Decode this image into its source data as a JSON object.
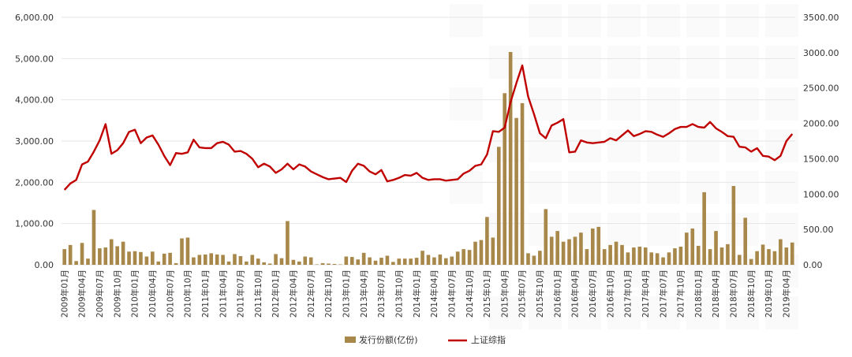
{
  "chart_data": {
    "type": "bar+line",
    "title": "",
    "colors": {
      "bar": "#a8884a",
      "line": "#c00000",
      "grid": "#e6e6e6",
      "text": "#333333"
    },
    "y_left": {
      "ylim": [
        0,
        6000
      ],
      "ticks": [
        "0.00",
        "1,000.00",
        "2,000.00",
        "3,000.00",
        "4,000.00",
        "5,000.00",
        "6,000.00"
      ]
    },
    "y_right": {
      "ylim": [
        0,
        3500
      ],
      "ticks": [
        "0.00",
        "500.00",
        "1000.00",
        "1500.00",
        "2000.00",
        "2500.00",
        "3000.00",
        "3500.00"
      ]
    },
    "x_tick_labels": [
      "2009年01月",
      "2009年04月",
      "2009年07月",
      "2009年10月",
      "2010年01月",
      "2010年04月",
      "2010年07月",
      "2010年10月",
      "2011年01月",
      "2011年04月",
      "2011年07月",
      "2011年10月",
      "2012年01月",
      "2012年04月",
      "2012年07月",
      "2012年10月",
      "2013年01月",
      "2013年04月",
      "2013年07月",
      "2013年10月",
      "2014年01月",
      "2014年04月",
      "2014年07月",
      "2014年10月",
      "2015年01月",
      "2015年04月",
      "2015年07月",
      "2015年10月",
      "2016年01月",
      "2016年04月",
      "2016年07月",
      "2016年10月",
      "2017年01月",
      "2017年04月",
      "2017年07月",
      "2017年10月",
      "2018年01月",
      "2018年04月",
      "2018年07月",
      "2018年10月",
      "2019年01月",
      "2019年04月"
    ],
    "series": [
      {
        "name": "发行份额(亿份)",
        "type": "bar",
        "axis": "left",
        "values": [
          380,
          480,
          90,
          530,
          150,
          1330,
          400,
          420,
          620,
          450,
          560,
          320,
          330,
          310,
          200,
          320,
          80,
          270,
          290,
          40,
          640,
          660,
          180,
          240,
          250,
          280,
          250,
          240,
          80,
          260,
          210,
          80,
          240,
          150,
          60,
          30,
          260,
          160,
          1060,
          120,
          80,
          200,
          180,
          10,
          40,
          30,
          20,
          10,
          200,
          190,
          130,
          290,
          180,
          100,
          170,
          220,
          70,
          150,
          150,
          150,
          170,
          340,
          240,
          180,
          250,
          160,
          200,
          320,
          380,
          360,
          560,
          600,
          1160,
          660,
          2860,
          4160,
          5160,
          3560,
          3920,
          280,
          220,
          340,
          1350,
          680,
          820,
          560,
          620,
          680,
          780,
          380,
          880,
          920,
          380,
          480,
          560,
          480,
          300,
          420,
          440,
          420,
          300,
          280,
          180,
          300,
          400,
          440,
          780,
          880,
          460,
          1760,
          380,
          820,
          420,
          500,
          1910,
          240,
          1140,
          140,
          330,
          490,
          380,
          330,
          620,
          420,
          540
        ]
      },
      {
        "name": "上证综指",
        "type": "line",
        "axis": "right",
        "values": [
          1060,
          1150,
          1200,
          1420,
          1460,
          1600,
          1760,
          1990,
          1570,
          1620,
          1720,
          1880,
          1910,
          1720,
          1800,
          1830,
          1700,
          1540,
          1410,
          1580,
          1570,
          1590,
          1770,
          1660,
          1650,
          1650,
          1720,
          1740,
          1700,
          1600,
          1610,
          1570,
          1500,
          1380,
          1430,
          1390,
          1300,
          1350,
          1430,
          1350,
          1420,
          1390,
          1320,
          1280,
          1240,
          1210,
          1220,
          1230,
          1170,
          1330,
          1430,
          1400,
          1320,
          1280,
          1340,
          1180,
          1200,
          1230,
          1270,
          1260,
          1300,
          1230,
          1200,
          1210,
          1210,
          1190,
          1200,
          1210,
          1290,
          1330,
          1400,
          1420,
          1560,
          1890,
          1880,
          1940,
          2300,
          2570,
          2820,
          2380,
          2130,
          1860,
          1790,
          1970,
          2010,
          2060,
          1590,
          1600,
          1760,
          1730,
          1720,
          1730,
          1740,
          1790,
          1760,
          1830,
          1900,
          1820,
          1850,
          1890,
          1880,
          1840,
          1810,
          1860,
          1920,
          1950,
          1950,
          1990,
          1950,
          1940,
          2020,
          1930,
          1880,
          1820,
          1810,
          1670,
          1660,
          1600,
          1650,
          1540,
          1530,
          1480,
          1540,
          1750,
          1850
        ]
      }
    ],
    "legend": {
      "position": "bottom-center",
      "entries": [
        "发行份额(亿份)",
        "上证综指"
      ]
    }
  }
}
